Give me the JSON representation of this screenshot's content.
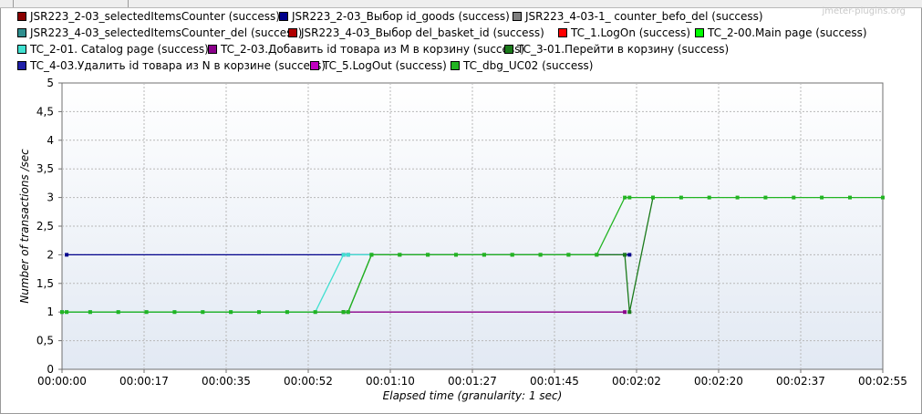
{
  "watermark": "jmeter-plugins.org",
  "legend": [
    {
      "label": "JSR223_2-03_selectedItemsCounter (success)",
      "color": "#8b0000"
    },
    {
      "label": "JSR223_2-03_Выбор id_goods (success)",
      "color": "#00008b"
    },
    {
      "label": "JSR223_4-03-1_ counter_befo_del (success)",
      "color": "#808080"
    },
    {
      "label": "JSR223_4-03_selectedItemsCounter_del (success)",
      "color": "#2f8f8f"
    },
    {
      "label": "JSR223_4-03_Выбор del_basket_id (success)",
      "color": "#b00000"
    },
    {
      "label": "TC_1.LogOn (success)",
      "color": "#ff0000"
    },
    {
      "label": "TC_2-00.Main page (success)",
      "color": "#00ff00"
    },
    {
      "label": "TC_2-01. Catalog page (success)",
      "color": "#40e0d0"
    },
    {
      "label": "TC_2-03.Добавить id товара из M в корзину (success)",
      "color": "#8b008b"
    },
    {
      "label": "TC_3-01.Перейти в корзину (success)",
      "color": "#1a7a1a"
    },
    {
      "label": "TC_4-03.Удалить id товара из N в корзине (success)",
      "color": "#1f1fa8"
    },
    {
      "label": "TC_5.LogOut (success)",
      "color": "#c000c0"
    },
    {
      "label": "TC_dbg_UC02 (success)",
      "color": "#22b422"
    }
  ],
  "chart_data": {
    "type": "line",
    "ylabel": "Number of transactions /sec",
    "xlabel": "Elapsed time (granularity: 1 sec)",
    "ylim": [
      0,
      5
    ],
    "xlim": [
      0,
      175
    ],
    "grid": true,
    "legend_position": "top",
    "y_ticks": [
      "0",
      "0,5",
      "1",
      "1,5",
      "2",
      "2,5",
      "3",
      "3,5",
      "4",
      "4,5",
      "5"
    ],
    "x_ticks": [
      "00:00:00",
      "00:00:17",
      "00:00:35",
      "00:00:52",
      "00:01:10",
      "00:01:27",
      "00:01:45",
      "00:02:02",
      "00:02:20",
      "00:02:37",
      "00:02:55"
    ],
    "series": [
      {
        "name": "JSR223_2-03_Выбор id_goods (success)",
        "color": "#00008b",
        "x": [
          1,
          60,
          61,
          120,
          121
        ],
        "y": [
          2,
          2,
          2,
          2,
          2
        ]
      },
      {
        "name": "TC_2-03.Добавить id товара из M в корзину (success)",
        "color": "#8b008b",
        "x": [
          0,
          60,
          120
        ],
        "y": [
          1,
          1,
          1
        ]
      },
      {
        "name": "TC_2-01. Catalog page (success)",
        "color": "#40e0d0",
        "x": [
          0,
          1,
          6,
          12,
          18,
          24,
          30,
          36,
          42,
          48,
          54,
          60,
          61,
          66
        ],
        "y": [
          1,
          1,
          1,
          1,
          1,
          1,
          1,
          1,
          1,
          1,
          1,
          2,
          2,
          2
        ]
      },
      {
        "name": "TC_3-01.Перейти в корзину (success)",
        "color": "#1a7a1a",
        "x": [
          60,
          61,
          66,
          72,
          78,
          84,
          90,
          96,
          102,
          108,
          114,
          120,
          121,
          126
        ],
        "y": [
          1,
          1,
          2,
          2,
          2,
          2,
          2,
          2,
          2,
          2,
          2,
          2,
          1,
          3
        ]
      },
      {
        "name": "TC_dbg_UC02 (success)",
        "color": "#22b422",
        "x": [
          0,
          1,
          6,
          12,
          18,
          24,
          30,
          36,
          42,
          48,
          54,
          60,
          61,
          66,
          72,
          78,
          84,
          90,
          96,
          102,
          108,
          114,
          120,
          121,
          126,
          132,
          138,
          144,
          150,
          156,
          162,
          168,
          175
        ],
        "y": [
          1,
          1,
          1,
          1,
          1,
          1,
          1,
          1,
          1,
          1,
          1,
          1,
          1,
          2,
          2,
          2,
          2,
          2,
          2,
          2,
          2,
          2,
          3,
          3,
          3,
          3,
          3,
          3,
          3,
          3,
          3,
          3,
          3
        ]
      }
    ]
  }
}
